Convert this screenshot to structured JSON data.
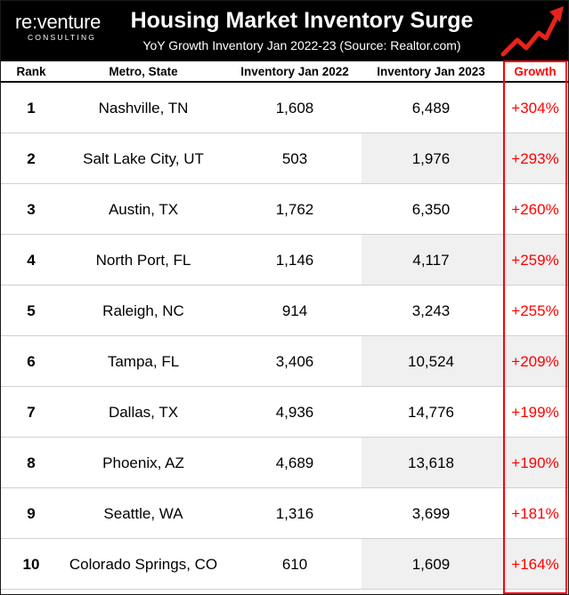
{
  "header": {
    "logo_main": "re:venture",
    "logo_sub": "CONSULTING",
    "title": "Housing Market Inventory Surge",
    "subtitle": "YoY Growth Inventory Jan 2022-23 (Source: Realtor.com)",
    "arrow_icon": "rising-trend-arrow-icon",
    "colors": {
      "background": "#000000",
      "arrow": "#e8231b",
      "text": "#ffffff"
    }
  },
  "columns": {
    "rank": "Rank",
    "metro": "Metro, State",
    "inv2022": "Inventory Jan 2022",
    "inv2023": "Inventory Jan 2023",
    "growth": "Growth"
  },
  "colors": {
    "growth": "#ff0000",
    "shade": "#f0f0f0"
  },
  "rows": [
    {
      "rank": "1",
      "metro": "Nashville, TN",
      "inv2022": "1,608",
      "inv2023": "6,489",
      "growth": "+304%"
    },
    {
      "rank": "2",
      "metro": "Salt Lake City, UT",
      "inv2022": "503",
      "inv2023": "1,976",
      "growth": "+293%"
    },
    {
      "rank": "3",
      "metro": "Austin, TX",
      "inv2022": "1,762",
      "inv2023": "6,350",
      "growth": "+260%"
    },
    {
      "rank": "4",
      "metro": "North Port, FL",
      "inv2022": "1,146",
      "inv2023": "4,117",
      "growth": "+259%"
    },
    {
      "rank": "5",
      "metro": "Raleigh, NC",
      "inv2022": "914",
      "inv2023": "3,243",
      "growth": "+255%"
    },
    {
      "rank": "6",
      "metro": "Tampa, FL",
      "inv2022": "3,406",
      "inv2023": "10,524",
      "growth": "+209%"
    },
    {
      "rank": "7",
      "metro": "Dallas, TX",
      "inv2022": "4,936",
      "inv2023": "14,776",
      "growth": "+199%"
    },
    {
      "rank": "8",
      "metro": "Phoenix, AZ",
      "inv2022": "4,689",
      "inv2023": "13,618",
      "growth": "+190%"
    },
    {
      "rank": "9",
      "metro": "Seattle, WA",
      "inv2022": "1,316",
      "inv2023": "3,699",
      "growth": "+181%"
    },
    {
      "rank": "10",
      "metro": "Colorado Springs, CO",
      "inv2022": "610",
      "inv2023": "1,609",
      "growth": "+164%"
    }
  ],
  "chart_data": {
    "type": "table",
    "title": "Housing Market Inventory Surge",
    "subtitle": "YoY Growth Inventory Jan 2022-23 (Source: Realtor.com)",
    "columns": [
      "Rank",
      "Metro, State",
      "Inventory Jan 2022",
      "Inventory Jan 2023",
      "Growth"
    ],
    "rows": [
      [
        1,
        "Nashville, TN",
        1608,
        6489,
        "+304%"
      ],
      [
        2,
        "Salt Lake City, UT",
        503,
        1976,
        "+293%"
      ],
      [
        3,
        "Austin, TX",
        1762,
        6350,
        "+260%"
      ],
      [
        4,
        "North Port, FL",
        1146,
        4117,
        "+259%"
      ],
      [
        5,
        "Raleigh, NC",
        914,
        3243,
        "+255%"
      ],
      [
        6,
        "Tampa, FL",
        3406,
        10524,
        "+209%"
      ],
      [
        7,
        "Dallas, TX",
        4936,
        14776,
        "+199%"
      ],
      [
        8,
        "Phoenix, AZ",
        4689,
        13618,
        "+190%"
      ],
      [
        9,
        "Seattle, WA",
        1316,
        3699,
        "+181%"
      ],
      [
        10,
        "Colorado Springs, CO",
        610,
        1609,
        "+164%"
      ]
    ]
  }
}
